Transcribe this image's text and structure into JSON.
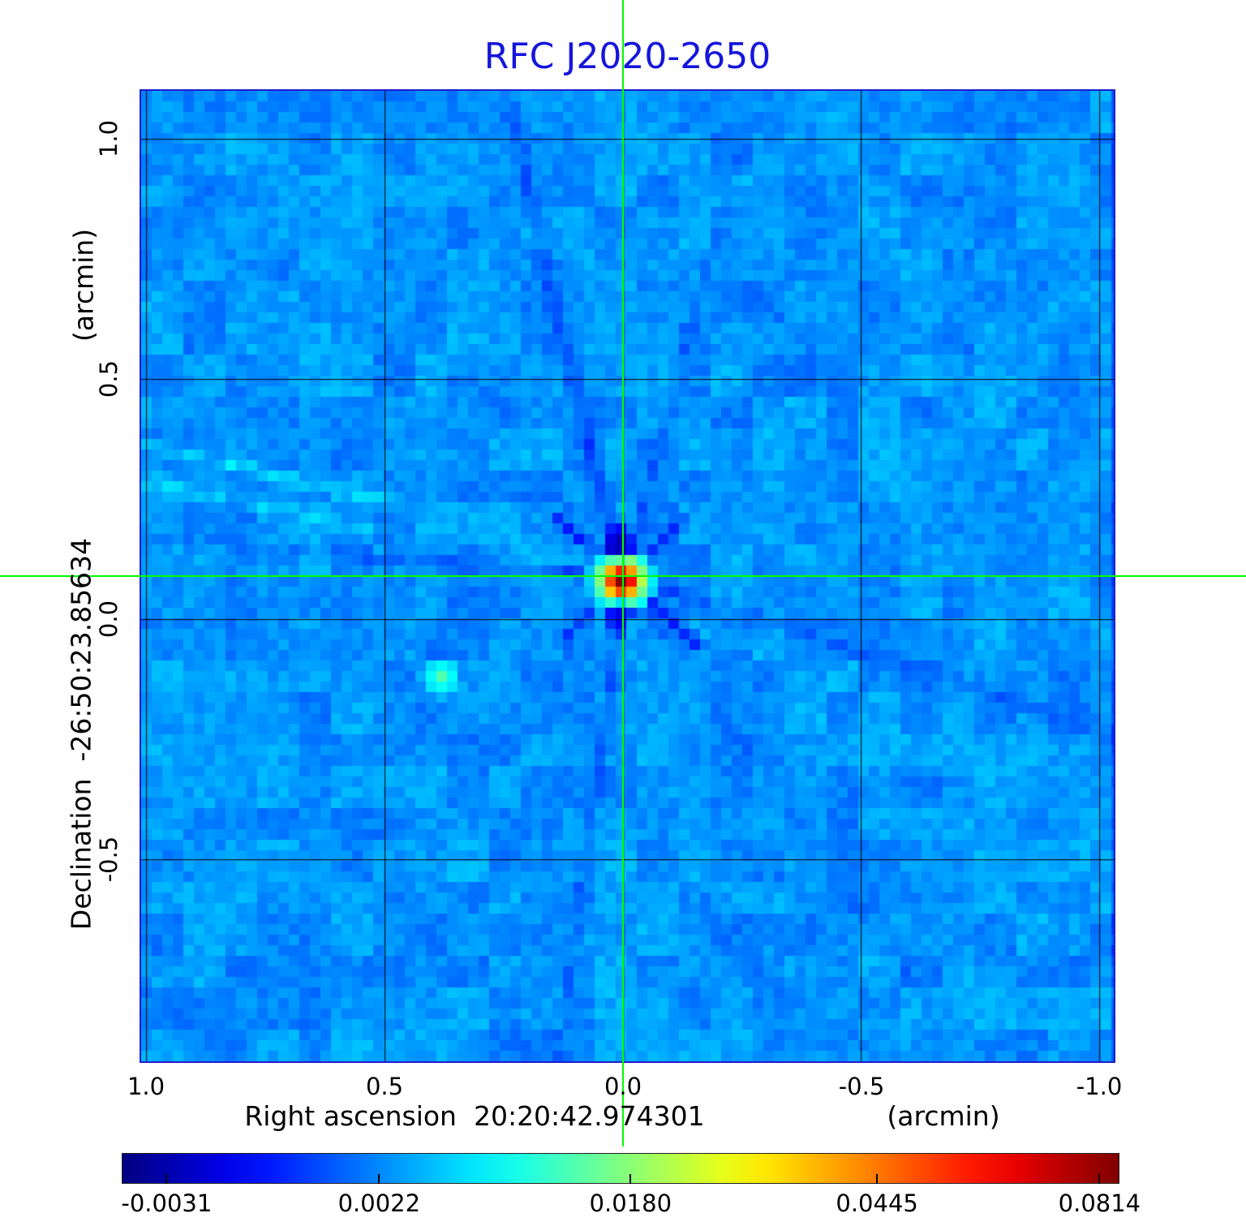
{
  "title": "RFC J2020-2650",
  "colors": {
    "title": "#1515dd",
    "crosshair": "#00ff00",
    "frame": "#1d1dcb",
    "grid": "#000000"
  },
  "axes": {
    "x_label": "Right ascension  20:20:42.974301",
    "x_unit": "(arcmin)",
    "y_label": "Declination  -26:50:23.85634",
    "y_unit": "(arcmin)",
    "x_ticks": [
      "1.0",
      "0.5",
      "0.0",
      "-0.5",
      "-1.0"
    ],
    "y_ticks": [
      "1.0",
      "0.5",
      "0.0",
      "-0.5"
    ]
  },
  "colorbar": {
    "tick_labels": [
      "-0.0031",
      "0.0022",
      "0.0180",
      "0.0445",
      "0.0814"
    ],
    "tick_positions_pct": [
      4.5,
      25.8,
      51.0,
      75.7,
      98.0
    ]
  },
  "chart_data": {
    "type": "heatmap",
    "title": "RFC J2020-2650",
    "xlabel": "Right ascension 20:20:42.974301 (arcmin)",
    "ylabel": "Declination -26:50:23.85634 (arcmin)",
    "xlim": [
      1.01,
      -1.03
    ],
    "ylim": [
      -0.92,
      1.1
    ],
    "x_tick_values": [
      1.0,
      0.5,
      0.0,
      -0.5,
      -1.0
    ],
    "y_tick_values": [
      1.0,
      0.5,
      0.0,
      -0.5
    ],
    "grid": true,
    "legend": false,
    "colormap": "jet",
    "colorbar_tick_values": [
      -0.0031,
      0.0022,
      0.018,
      0.0445,
      0.0814
    ],
    "background_level": 0.002,
    "peak": {
      "x_arcmin": 0.0,
      "y_arcmin": 0.09,
      "value": 0.0814
    },
    "secondary_source": {
      "x_arcmin": 0.38,
      "y_arcmin": -0.12,
      "value": 0.01
    },
    "crosshair_arcmin": {
      "x": 0.0,
      "y": 0.09
    },
    "description": "VLBI radio image: bright compact source at field center with negative sidelobes and faint diffraction spikes over a blue noise background"
  }
}
